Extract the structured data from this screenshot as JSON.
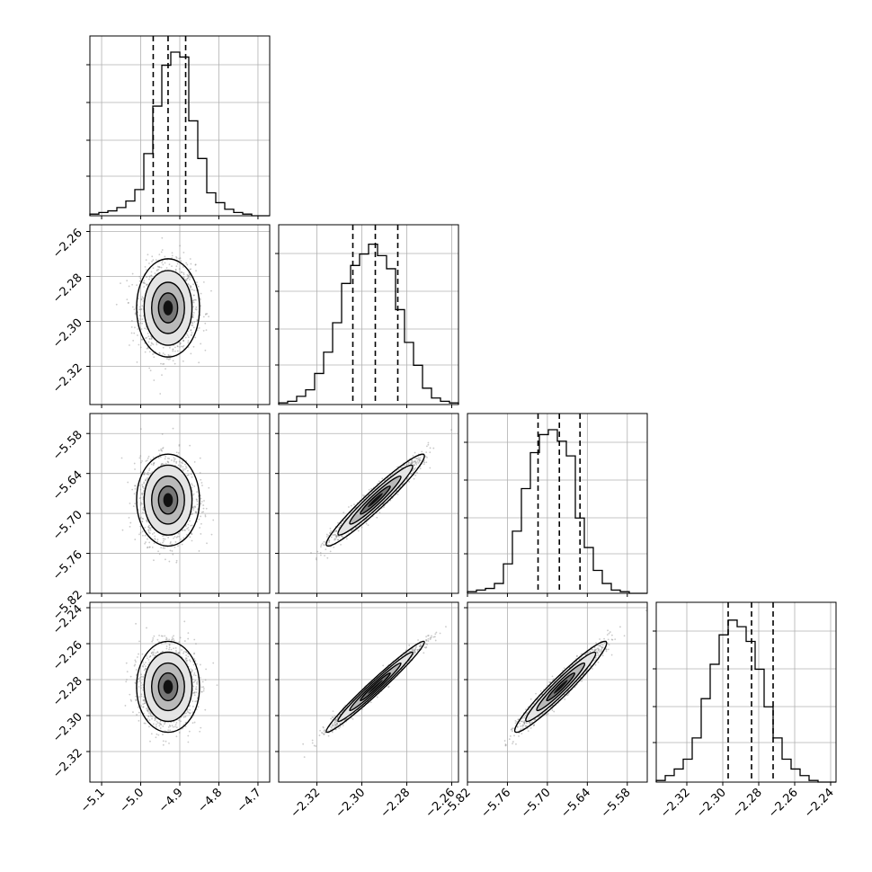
{
  "chart_data": {
    "type": "corner",
    "params": [
      {
        "name": "",
        "lim": [
          -5.13,
          -4.67
        ],
        "ticks": [
          -5.1,
          -5.0,
          -4.9,
          -4.8,
          -4.7
        ],
        "tick_labels": [
          "−5.1",
          "−5.0",
          "−4.9",
          "−4.8",
          "−4.7"
        ],
        "mean": -4.93,
        "std": 0.035,
        "quantiles": [
          -4.968,
          -4.93,
          -4.885
        ]
      },
      {
        "name": "",
        "lim": [
          -2.337,
          -2.257
        ],
        "ticks": [
          -2.32,
          -2.3,
          -2.28,
          -2.26
        ],
        "tick_labels": [
          "−2.32",
          "−2.30",
          "−2.28",
          "−2.26"
        ],
        "mean": -2.294,
        "std": 0.0095,
        "quantiles": [
          -2.304,
          -2.294,
          -2.284
        ]
      },
      {
        "name": "",
        "lim": [
          -5.82,
          -5.55
        ],
        "ticks": [
          -5.82,
          -5.76,
          -5.7,
          -5.64,
          -5.58
        ],
        "tick_labels": [
          "−5.82",
          "−5.76",
          "−5.70",
          "−5.64",
          "−5.58"
        ],
        "mean": -5.68,
        "std": 0.03,
        "quantiles": [
          -5.714,
          -5.682,
          -5.651
        ]
      },
      {
        "name": "",
        "lim": [
          -2.337,
          -2.237
        ],
        "ticks": [
          -2.32,
          -2.3,
          -2.28,
          -2.26,
          -2.24
        ],
        "tick_labels": [
          "−2.32",
          "−2.30",
          "−2.28",
          "−2.26",
          "−2.24"
        ],
        "mean": -2.284,
        "std": 0.011,
        "quantiles": [
          -2.297,
          -2.284,
          -2.272
        ]
      }
    ],
    "histograms": [
      {
        "edges_count": 20,
        "counts": [
          0.01,
          0.02,
          0.03,
          0.05,
          0.09,
          0.16,
          0.38,
          0.67,
          0.92,
          1.0,
          0.97,
          0.58,
          0.35,
          0.14,
          0.08,
          0.04,
          0.02,
          0.01,
          0.0,
          0.0
        ]
      },
      {
        "edges_count": 20,
        "counts": [
          0.01,
          0.02,
          0.05,
          0.09,
          0.19,
          0.32,
          0.5,
          0.74,
          0.85,
          0.92,
          0.98,
          0.91,
          0.83,
          0.58,
          0.38,
          0.24,
          0.1,
          0.04,
          0.02,
          0.01
        ]
      },
      {
        "edges_count": 20,
        "counts": [
          0.01,
          0.02,
          0.03,
          0.06,
          0.18,
          0.38,
          0.64,
          0.86,
          0.97,
          1.0,
          0.93,
          0.84,
          0.46,
          0.28,
          0.14,
          0.06,
          0.02,
          0.01,
          0.0,
          0.0
        ]
      },
      {
        "edges_count": 20,
        "counts": [
          0.01,
          0.04,
          0.08,
          0.14,
          0.27,
          0.51,
          0.72,
          0.9,
          0.99,
          0.95,
          0.86,
          0.69,
          0.46,
          0.27,
          0.14,
          0.08,
          0.04,
          0.01,
          0.0,
          0.0
        ]
      }
    ],
    "correlations": {
      "1-0": 0.0,
      "2-0": 0.0,
      "2-1": 0.96,
      "3-0": 0.0,
      "3-1": 0.98,
      "3-2": 0.96
    },
    "grid": true,
    "legend": "none"
  }
}
